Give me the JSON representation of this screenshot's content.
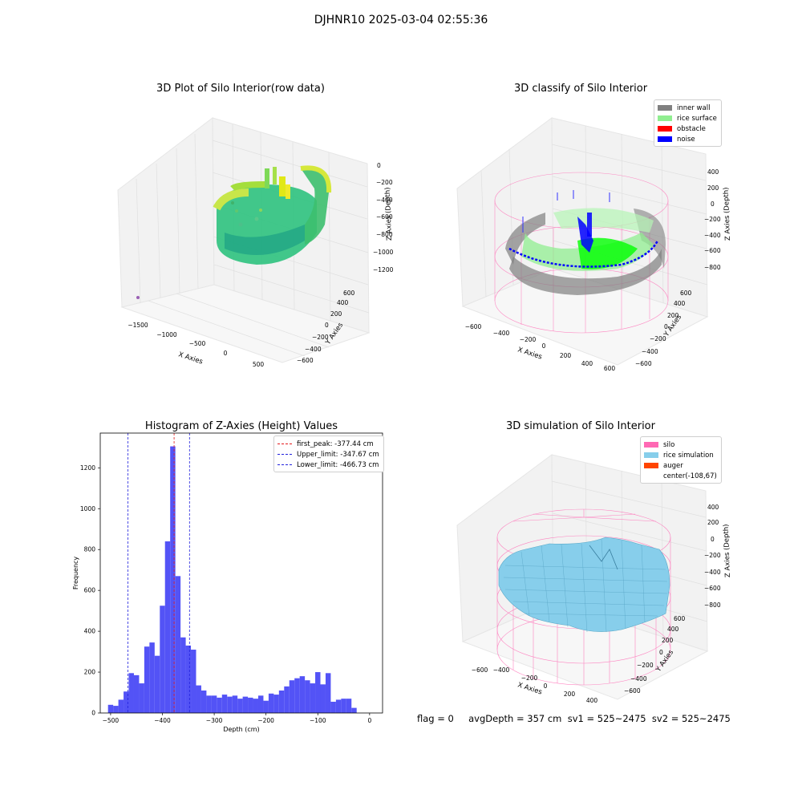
{
  "suptitle": "DJHNR10 2025-03-04 02:55:36",
  "footer": "flag = 0     avgDepth = 357 cm  sv1 = 525~2475  sv2 = 525~2475",
  "colors": {
    "histogram": "#4a4af5",
    "first_peak": "#e41a1c",
    "limits": "#2222dd",
    "inner_wall": "#808080",
    "rice_surface": "#90ee90",
    "obstacle": "#ff0000",
    "noise": "#0000ff",
    "silo": "#ff69b4",
    "rice_simulation": "#87ceeb",
    "auger": "#ff4500"
  },
  "raw_plot": {
    "title": "3D Plot of Silo Interior(row data)",
    "xlabel": "X Axies",
    "ylabel": "Y Axies",
    "zlabel": "Z Axies (Depth)",
    "xticks": [
      "−1500",
      "−1000",
      "−500",
      "0",
      "500"
    ],
    "yticks": [
      "−600",
      "−400",
      "−200",
      "0",
      "200",
      "400",
      "600"
    ],
    "zticks": [
      "0",
      "−200",
      "−400",
      "−600",
      "−800",
      "−1000",
      "−1200"
    ]
  },
  "classify_plot": {
    "title": "3D classify of Silo Interior",
    "xlabel": "X Axies",
    "ylabel": "Y Axies",
    "zlabel": "Z Axies (Depth)",
    "xticks": [
      "−600",
      "−400",
      "−200",
      "0",
      "200",
      "400",
      "600"
    ],
    "yticks": [
      "−600",
      "−400",
      "−200",
      "0",
      "200",
      "400",
      "600"
    ],
    "zticks": [
      "400",
      "200",
      "0",
      "−200",
      "−400",
      "−600",
      "−800"
    ],
    "legend": [
      "inner wall",
      "rice surface",
      "obstacle",
      "noise"
    ]
  },
  "sim_plot": {
    "title": "3D simulation of Silo Interior",
    "xlabel": "X Axies",
    "ylabel": "Y Axies",
    "zlabel": "Z Axies (Depth)",
    "xticks": [
      "−600",
      "−400",
      "−200",
      "0",
      "200",
      "400"
    ],
    "yticks": [
      "−600",
      "−400",
      "−200",
      "0",
      "200",
      "400",
      "600"
    ],
    "zticks": [
      "400",
      "200",
      "0",
      "−200",
      "−400",
      "−600",
      "−800"
    ],
    "legend": [
      "silo",
      "rice simulation",
      "auger",
      "center(-108,67)"
    ]
  },
  "chart_data": {
    "type": "bar",
    "title": "Histogram of Z-Axies (Height) Values",
    "xlabel": "Depth (cm)",
    "ylabel": "Frequency",
    "xlim": [
      -520,
      25
    ],
    "ylim": [
      0,
      1370
    ],
    "xticks": [
      -500,
      -400,
      -300,
      -200,
      -100,
      0
    ],
    "yticks": [
      0,
      200,
      400,
      600,
      800,
      1000,
      1200
    ],
    "bin_start": -505,
    "bin_width": 10,
    "values": [
      40,
      35,
      65,
      105,
      195,
      185,
      145,
      325,
      345,
      280,
      525,
      840,
      1305,
      670,
      370,
      330,
      310,
      135,
      110,
      85,
      85,
      75,
      90,
      80,
      85,
      70,
      80,
      75,
      70,
      85,
      60,
      95,
      90,
      110,
      130,
      160,
      170,
      180,
      160,
      145,
      200,
      140,
      195,
      55,
      65,
      70,
      70,
      25
    ],
    "lines": [
      {
        "label": "first_peak: -377.44 cm",
        "x": -377.44,
        "color": "#e41a1c"
      },
      {
        "label": "Upper_limit: -347.67 cm",
        "x": -347.67,
        "color": "#2222dd"
      },
      {
        "label": "Lower_limit: -466.73 cm",
        "x": -466.73,
        "color": "#2222dd"
      }
    ],
    "legend_position": "top-right"
  }
}
